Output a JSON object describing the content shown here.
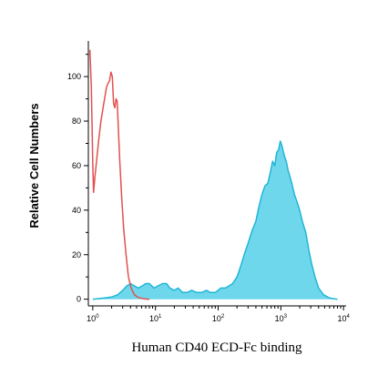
{
  "chart_data": {
    "type": "area",
    "title": "",
    "xlabel": "Human CD40 ECD-Fc binding",
    "ylabel": "Relative Cell Numbers",
    "xscale": "log",
    "xlim": [
      0.85,
      11000
    ],
    "ylim": [
      -3,
      116
    ],
    "yticks": [
      0,
      20,
      40,
      60,
      80,
      100
    ],
    "xticks": [
      {
        "base": "10",
        "exp": "0",
        "value": 1
      },
      {
        "base": "10",
        "exp": "1",
        "value": 10
      },
      {
        "base": "10",
        "exp": "2",
        "value": 100
      },
      {
        "base": "10",
        "exp": "3",
        "value": 1000
      },
      {
        "base": "10",
        "exp": "4",
        "value": 10000
      }
    ],
    "grid": false,
    "legend": "none",
    "series": [
      {
        "color": "#e0514f",
        "fill": "none",
        "points": [
          [
            0.9,
            112
          ],
          [
            0.95,
            95
          ],
          [
            1.0,
            60
          ],
          [
            1.03,
            48
          ],
          [
            1.08,
            55
          ],
          [
            1.15,
            62
          ],
          [
            1.25,
            72
          ],
          [
            1.35,
            80
          ],
          [
            1.5,
            88
          ],
          [
            1.65,
            95
          ],
          [
            1.75,
            97
          ],
          [
            1.85,
            98
          ],
          [
            1.95,
            102
          ],
          [
            2.05,
            100
          ],
          [
            2.15,
            88
          ],
          [
            2.25,
            86
          ],
          [
            2.35,
            90
          ],
          [
            2.45,
            89
          ],
          [
            2.55,
            78
          ],
          [
            2.7,
            62
          ],
          [
            2.9,
            45
          ],
          [
            3.1,
            32
          ],
          [
            3.4,
            20
          ],
          [
            3.7,
            10
          ],
          [
            4.1,
            5
          ],
          [
            4.6,
            2
          ],
          [
            5.3,
            0.8
          ],
          [
            6.5,
            0.2
          ],
          [
            8,
            0
          ]
        ]
      },
      {
        "color": "#1fb6d6",
        "fill": "#5fd3ea",
        "points": [
          [
            1.0,
            0
          ],
          [
            1.5,
            0.5
          ],
          [
            2.0,
            1
          ],
          [
            2.5,
            2
          ],
          [
            3.0,
            4
          ],
          [
            3.5,
            6
          ],
          [
            4.0,
            7
          ],
          [
            4.6,
            6
          ],
          [
            5.3,
            5
          ],
          [
            6.2,
            6
          ],
          [
            7.0,
            7
          ],
          [
            8.0,
            7
          ],
          [
            9.5,
            5
          ],
          [
            11,
            6
          ],
          [
            13,
            7
          ],
          [
            15,
            7
          ],
          [
            17,
            5
          ],
          [
            20,
            4
          ],
          [
            23,
            5
          ],
          [
            27,
            3
          ],
          [
            32,
            3
          ],
          [
            38,
            4
          ],
          [
            45,
            3
          ],
          [
            55,
            3
          ],
          [
            65,
            4
          ],
          [
            75,
            3
          ],
          [
            90,
            3
          ],
          [
            110,
            5
          ],
          [
            130,
            5
          ],
          [
            150,
            6
          ],
          [
            170,
            7
          ],
          [
            200,
            10
          ],
          [
            230,
            15
          ],
          [
            260,
            20
          ],
          [
            300,
            25
          ],
          [
            350,
            31
          ],
          [
            400,
            35
          ],
          [
            450,
            42
          ],
          [
            500,
            47
          ],
          [
            560,
            51
          ],
          [
            620,
            52
          ],
          [
            680,
            57
          ],
          [
            740,
            62
          ],
          [
            800,
            60
          ],
          [
            860,
            66
          ],
          [
            920,
            67
          ],
          [
            980,
            71
          ],
          [
            1040,
            69
          ],
          [
            1100,
            66
          ],
          [
            1150,
            64
          ],
          [
            1220,
            62
          ],
          [
            1300,
            58
          ],
          [
            1400,
            55
          ],
          [
            1500,
            52
          ],
          [
            1650,
            47
          ],
          [
            1800,
            44
          ],
          [
            2000,
            40
          ],
          [
            2200,
            35
          ],
          [
            2500,
            30
          ],
          [
            2800,
            22
          ],
          [
            3100,
            16
          ],
          [
            3500,
            10
          ],
          [
            4000,
            5
          ],
          [
            4800,
            2
          ],
          [
            6000,
            0.5
          ],
          [
            8000,
            0
          ]
        ]
      }
    ]
  }
}
